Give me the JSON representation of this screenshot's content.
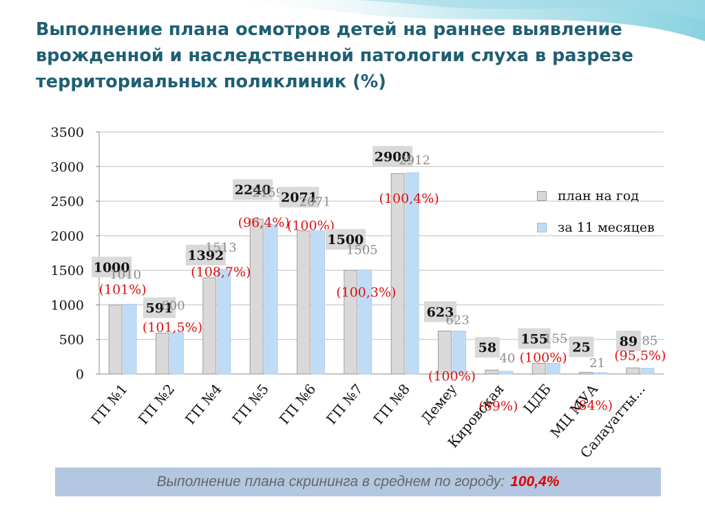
{
  "slide": {
    "title": "Выполнение плана осмотров детей на раннее выявление врожденной и наследственной патологии слуха в разрезе территориальных поликлиник (%)",
    "footer_text": "Выполнение плана скрининга в среднем по городу:",
    "footer_value": "100,4%"
  },
  "colors": {
    "plan": "#d9d9d9",
    "fact": "#bfdcf6",
    "percent_text": "#dd1111",
    "fact_label": "#8c8c8c",
    "title": "#1f5f73"
  },
  "chart_data": {
    "type": "bar",
    "categories": [
      "ГП №1",
      "ГП №2",
      "ГП №4",
      "ГП №5",
      "ГП №6",
      "ГП  №7",
      "ГП №8",
      "Демеу",
      "Кировская",
      "ЦДБ",
      "МЦ МУА",
      "Салауатты..."
    ],
    "series": [
      {
        "name": "план на год",
        "values": [
          1000,
          591,
          1392,
          2240,
          2071,
          1500,
          2900,
          623,
          58,
          155,
          25,
          89
        ]
      },
      {
        "name": "за 11 месяцев",
        "values": [
          1010,
          600,
          1513,
          2159,
          2071,
          1505,
          2912,
          623,
          40,
          155,
          21,
          85
        ]
      }
    ],
    "percent_labels": [
      "(101%)",
      "(101,5%)",
      "(108,7%)",
      "(96,4%)",
      "(100%)",
      "(100,3%)",
      "(100,4%)",
      "(100%)",
      "(69%)",
      "(100%)",
      "(84%)",
      "(95,5%)"
    ],
    "yticks": [
      0,
      500,
      1000,
      1500,
      2000,
      2500,
      3000,
      3500
    ],
    "ylim": [
      0,
      3500
    ],
    "grid": true,
    "legend": "right"
  }
}
